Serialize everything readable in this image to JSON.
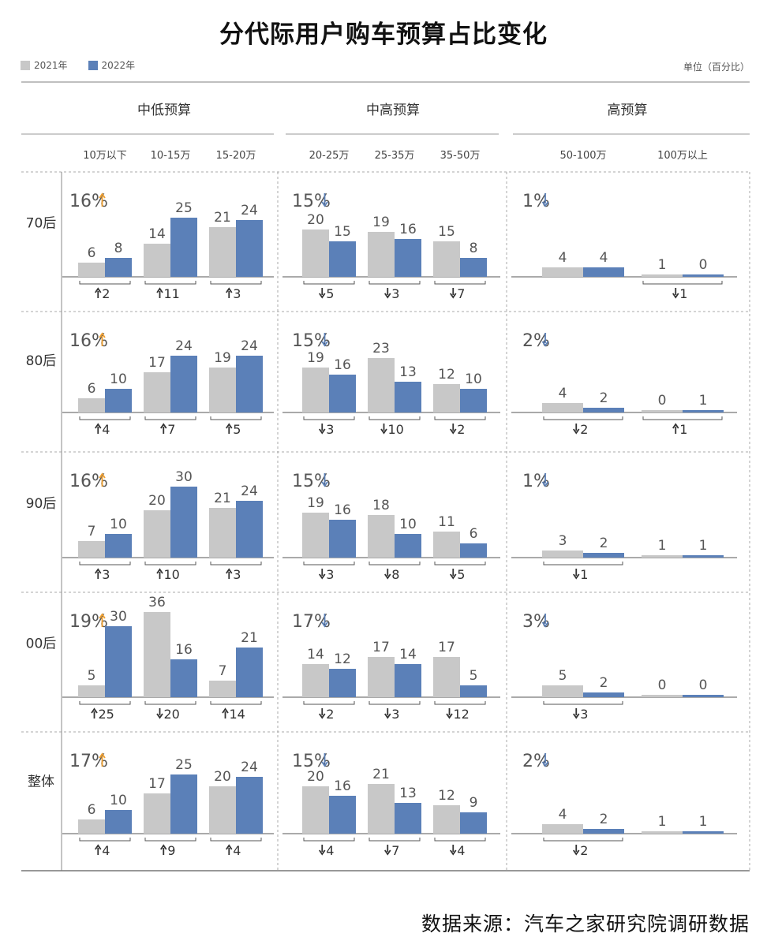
{
  "title": "分代际用户购车预算占比变化",
  "legend": [
    {
      "label": "2021年",
      "color": "#c8c8c8"
    },
    {
      "label": "2022年",
      "color": "#5b80b8"
    }
  ],
  "unit": "单位（百分比）",
  "source": "数据来源：汽车之家研究院调研数据",
  "colors": {
    "y2021": "#c8c8c8",
    "y2022": "#5b80b8",
    "up": "#f0a030",
    "down": "#5b80b8"
  },
  "chart_data": {
    "type": "bar",
    "groups": [
      {
        "name": "中低预算",
        "categories": [
          "10万以下",
          "10-15万",
          "15-20万"
        ]
      },
      {
        "name": "中高预算",
        "categories": [
          "20-25万",
          "25-35万",
          "35-50万"
        ]
      },
      {
        "name": "高预算",
        "categories": [
          "50-100万",
          "100万以上"
        ]
      }
    ],
    "rows": [
      {
        "label": "70后",
        "totals": [
          {
            "text": "16%",
            "dir": "up"
          },
          {
            "text": "15%",
            "dir": "down"
          },
          {
            "text": "1%",
            "dir": "down"
          }
        ],
        "values2021": [
          6,
          14,
          21,
          20,
          19,
          15,
          4,
          1
        ],
        "values2022": [
          8,
          25,
          24,
          15,
          16,
          8,
          4,
          0
        ],
        "changes": [
          "2",
          "11",
          "3",
          "5",
          "3",
          "7",
          "",
          "1"
        ],
        "change_dirs": [
          "up",
          "up",
          "up",
          "down",
          "down",
          "down",
          "",
          "down"
        ]
      },
      {
        "label": "80后",
        "totals": [
          {
            "text": "16%",
            "dir": "up"
          },
          {
            "text": "15%",
            "dir": "down"
          },
          {
            "text": "2%",
            "dir": "down"
          }
        ],
        "values2021": [
          6,
          17,
          19,
          19,
          23,
          12,
          4,
          0
        ],
        "values2022": [
          10,
          24,
          24,
          16,
          13,
          10,
          2,
          1
        ],
        "changes": [
          "4",
          "7",
          "5",
          "3",
          "10",
          "2",
          "2",
          "1"
        ],
        "change_dirs": [
          "up",
          "up",
          "up",
          "down",
          "down",
          "down",
          "down",
          "up"
        ]
      },
      {
        "label": "90后",
        "totals": [
          {
            "text": "16%",
            "dir": "up"
          },
          {
            "text": "15%",
            "dir": "down"
          },
          {
            "text": "1%",
            "dir": "down"
          }
        ],
        "values2021": [
          7,
          20,
          21,
          19,
          18,
          11,
          3,
          1
        ],
        "values2022": [
          10,
          30,
          24,
          16,
          10,
          6,
          2,
          1
        ],
        "changes": [
          "3",
          "10",
          "3",
          "3",
          "8",
          "5",
          "1",
          ""
        ],
        "change_dirs": [
          "up",
          "up",
          "up",
          "down",
          "down",
          "down",
          "down",
          ""
        ]
      },
      {
        "label": "00后",
        "totals": [
          {
            "text": "19%",
            "dir": "up"
          },
          {
            "text": "17%",
            "dir": "down"
          },
          {
            "text": "3%",
            "dir": "down"
          }
        ],
        "values2021": [
          5,
          36,
          7,
          14,
          17,
          17,
          5,
          0
        ],
        "values2022": [
          30,
          16,
          21,
          12,
          14,
          5,
          2,
          0
        ],
        "changes": [
          "25",
          "20",
          "14",
          "2",
          "3",
          "12",
          "3",
          ""
        ],
        "change_dirs": [
          "up",
          "down",
          "up",
          "down",
          "down",
          "down",
          "down",
          ""
        ]
      },
      {
        "label": "整体",
        "totals": [
          {
            "text": "17%",
            "dir": "up"
          },
          {
            "text": "15%",
            "dir": "down"
          },
          {
            "text": "2%",
            "dir": "down"
          }
        ],
        "values2021": [
          6,
          17,
          20,
          20,
          21,
          12,
          4,
          1
        ],
        "values2022": [
          10,
          25,
          24,
          16,
          13,
          9,
          2,
          1
        ],
        "changes": [
          "4",
          "9",
          "4",
          "4",
          "7",
          "4",
          "2",
          ""
        ],
        "change_dirs": [
          "up",
          "up",
          "up",
          "down",
          "down",
          "down",
          "down",
          ""
        ]
      }
    ]
  }
}
